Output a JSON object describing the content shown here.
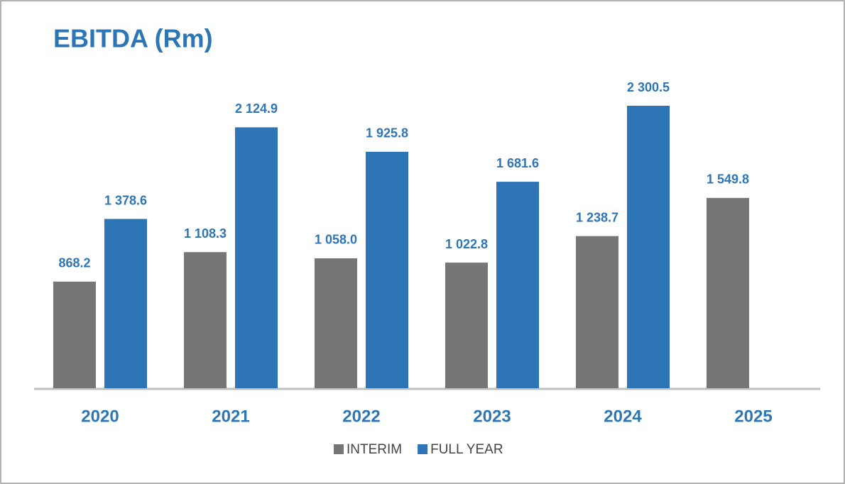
{
  "chart_data": {
    "type": "bar",
    "title": "EBITDA (Rm)",
    "categories": [
      "2020",
      "2021",
      "2022",
      "2023",
      "2024",
      "2025"
    ],
    "series": [
      {
        "name": "INTERIM",
        "color": "#767676",
        "values": [
          868.2,
          1108.3,
          1058.0,
          1022.8,
          1238.7,
          1549.8
        ],
        "value_labels": [
          "868.2",
          "1 108.3",
          "1 058.0",
          "1 022.8",
          "1 238.7",
          "1 549.8"
        ]
      },
      {
        "name": "FULL YEAR",
        "color": "#2e75b6",
        "values": [
          1378.6,
          2124.9,
          1925.8,
          1681.6,
          2300.5,
          null
        ],
        "value_labels": [
          "1 378.6",
          "2 124.9",
          "1 925.8",
          "1 681.6",
          "2 300.5",
          null
        ]
      }
    ],
    "legend": "bottom"
  }
}
